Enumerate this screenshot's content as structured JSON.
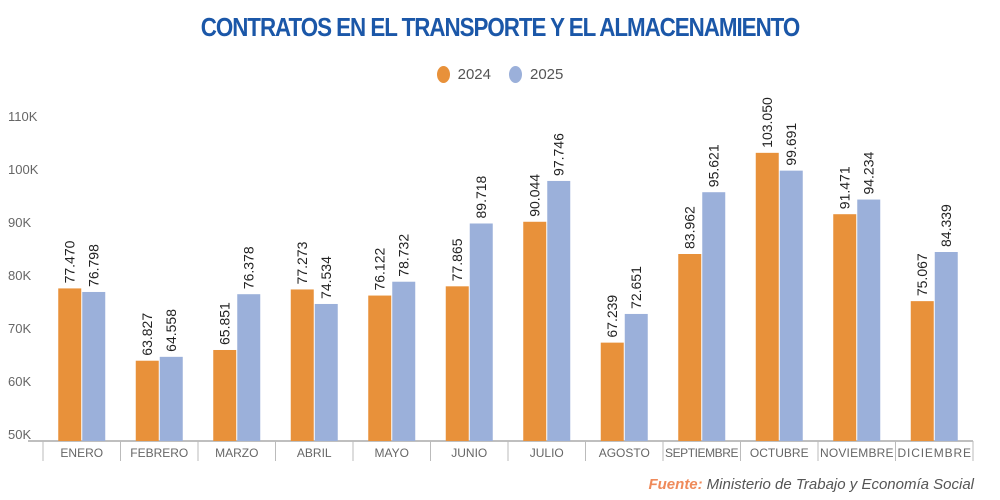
{
  "chart_data": {
    "type": "bar",
    "title": "CONTRATOS EN EL TRANSPORTE Y EL ALMACENAMIENTO",
    "xlabel": "",
    "ylabel": "",
    "ylim": [
      50000,
      110000
    ],
    "yticks": [
      50000,
      60000,
      70000,
      80000,
      90000,
      100000,
      110000
    ],
    "ytick_labels": [
      "50K",
      "60K",
      "70K",
      "80K",
      "90K",
      "100K",
      "110K"
    ],
    "grid": false,
    "legend_position": "top-center",
    "categories": [
      "ENERO",
      "FEBRERO",
      "MARZO",
      "ABRIL",
      "MAYO",
      "JUNIO",
      "JULIO",
      "AGOSTO",
      "SEPTIEMBRE",
      "OCTUBRE",
      "NOVIEMBRE",
      "DICIEMBRE"
    ],
    "series": [
      {
        "name": "2024",
        "color": "#e8913a",
        "values": [
          77470,
          63827,
          65851,
          77273,
          76122,
          77865,
          90044,
          67239,
          83962,
          103050,
          91471,
          75067
        ],
        "labels": [
          "77.470",
          "63.827",
          "65.851",
          "77.273",
          "76.122",
          "77.865",
          "90.044",
          "67.239",
          "83.962",
          "103.050",
          "91.471",
          "75.067"
        ]
      },
      {
        "name": "2025",
        "color": "#9bb0da",
        "values": [
          76798,
          64558,
          76378,
          74534,
          78732,
          89718,
          97746,
          72651,
          95621,
          99691,
          94234,
          84339
        ],
        "labels": [
          "76.798",
          "64.558",
          "76.378",
          "74.534",
          "78.732",
          "89.718",
          "97.746",
          "72.651",
          "95.621",
          "99.691",
          "94.234",
          "84.339"
        ]
      }
    ]
  },
  "legend": {
    "items": [
      {
        "label": "2024",
        "color": "#e8913a"
      },
      {
        "label": "2025",
        "color": "#9bb0da"
      }
    ]
  },
  "source": {
    "label": "Fuente:",
    "text": "Ministerio de Trabajo y Economía Social"
  }
}
